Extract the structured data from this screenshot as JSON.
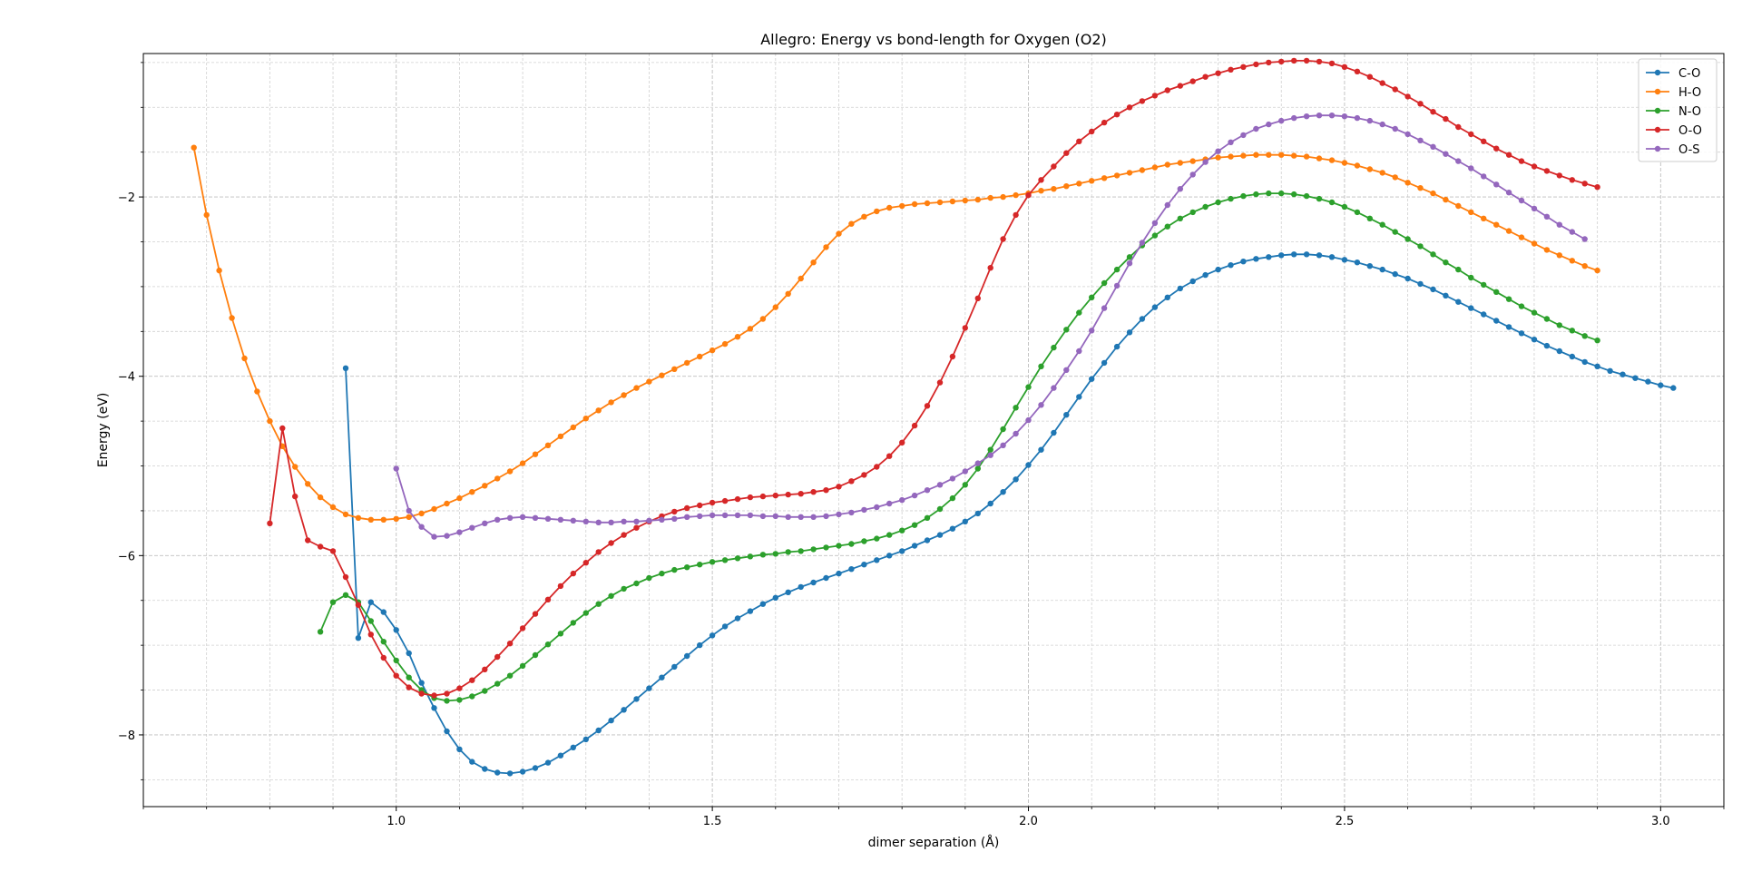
{
  "chart_data": {
    "type": "line",
    "title": "Allegro: Energy vs bond-length for Oxygen (O2)",
    "xlabel": "dimer separation (Å)",
    "ylabel": "Energy (eV)",
    "xlim": [
      0.6,
      3.1
    ],
    "ylim": [
      -8.8,
      -0.4
    ],
    "x_major_ticks": [
      1.0,
      1.5,
      2.0,
      2.5,
      3.0
    ],
    "x_tick_labels": [
      "1.0",
      "1.5",
      "2.0",
      "2.5",
      "3.0"
    ],
    "x_minor_step": 0.1,
    "y_major_ticks": [
      -8,
      -6,
      -4,
      -2
    ],
    "y_tick_labels": [
      "−8",
      "−6",
      "−4",
      "−2"
    ],
    "y_minor_step": 0.5,
    "grid": true,
    "legend_position": "top-right",
    "marker": "circle",
    "series": [
      {
        "name": "C-O",
        "color": "#1f77b4",
        "x_start": 0.92,
        "x_step": 0.02,
        "y": [
          -3.91,
          -6.92,
          -6.52,
          -6.63,
          -6.83,
          -7.09,
          -7.42,
          -7.7,
          -7.96,
          -8.16,
          -8.3,
          -8.38,
          -8.42,
          -8.43,
          -8.41,
          -8.37,
          -8.31,
          -8.23,
          -8.14,
          -8.05,
          -7.95,
          -7.84,
          -7.72,
          -7.6,
          -7.48,
          -7.36,
          -7.24,
          -7.12,
          -7.0,
          -6.89,
          -6.79,
          -6.7,
          -6.62,
          -6.54,
          -6.47,
          -6.41,
          -6.35,
          -6.3,
          -6.25,
          -6.2,
          -6.15,
          -6.1,
          -6.05,
          -6.0,
          -5.95,
          -5.89,
          -5.83,
          -5.77,
          -5.7,
          -5.62,
          -5.53,
          -5.42,
          -5.29,
          -5.15,
          -4.99,
          -4.82,
          -4.63,
          -4.43,
          -4.23,
          -4.03,
          -3.85,
          -3.67,
          -3.51,
          -3.36,
          -3.23,
          -3.12,
          -3.02,
          -2.94,
          -2.87,
          -2.81,
          -2.76,
          -2.72,
          -2.69,
          -2.67,
          -2.65,
          -2.64,
          -2.64,
          -2.65,
          -2.67,
          -2.7,
          -2.73,
          -2.77,
          -2.81,
          -2.86,
          -2.91,
          -2.97,
          -3.03,
          -3.1,
          -3.17,
          -3.24,
          -3.31,
          -3.38,
          -3.45,
          -3.52,
          -3.59,
          -3.66,
          -3.72,
          -3.78,
          -3.84,
          -3.89,
          -3.94,
          -3.98,
          -4.02,
          -4.06,
          -4.1,
          -4.13
        ]
      },
      {
        "name": "H-O",
        "color": "#ff7f0e",
        "x_start": 0.68,
        "x_step": 0.02,
        "y": [
          -1.45,
          -2.2,
          -2.82,
          -3.35,
          -3.8,
          -4.17,
          -4.5,
          -4.78,
          -5.01,
          -5.2,
          -5.35,
          -5.46,
          -5.54,
          -5.58,
          -5.6,
          -5.6,
          -5.59,
          -5.57,
          -5.53,
          -5.48,
          -5.42,
          -5.36,
          -5.29,
          -5.22,
          -5.14,
          -5.06,
          -4.97,
          -4.87,
          -4.77,
          -4.67,
          -4.57,
          -4.47,
          -4.38,
          -4.29,
          -4.21,
          -4.13,
          -4.06,
          -3.99,
          -3.92,
          -3.85,
          -3.78,
          -3.71,
          -3.64,
          -3.56,
          -3.47,
          -3.36,
          -3.23,
          -3.08,
          -2.91,
          -2.73,
          -2.56,
          -2.41,
          -2.3,
          -2.22,
          -2.16,
          -2.12,
          -2.1,
          -2.08,
          -2.07,
          -2.06,
          -2.05,
          -2.04,
          -2.03,
          -2.01,
          -2.0,
          -1.98,
          -1.96,
          -1.93,
          -1.91,
          -1.88,
          -1.85,
          -1.82,
          -1.79,
          -1.76,
          -1.73,
          -1.7,
          -1.67,
          -1.64,
          -1.62,
          -1.6,
          -1.58,
          -1.56,
          -1.55,
          -1.54,
          -1.53,
          -1.53,
          -1.53,
          -1.54,
          -1.55,
          -1.57,
          -1.59,
          -1.62,
          -1.65,
          -1.69,
          -1.73,
          -1.78,
          -1.84,
          -1.9,
          -1.96,
          -2.03,
          -2.1,
          -2.17,
          -2.24,
          -2.31,
          -2.38,
          -2.45,
          -2.52,
          -2.59,
          -2.65,
          -2.71,
          -2.77,
          -2.82
        ]
      },
      {
        "name": "N-O",
        "color": "#2ca02c",
        "x_start": 0.88,
        "x_step": 0.02,
        "y": [
          -6.85,
          -6.52,
          -6.44,
          -6.52,
          -6.73,
          -6.96,
          -7.17,
          -7.36,
          -7.5,
          -7.59,
          -7.62,
          -7.61,
          -7.57,
          -7.51,
          -7.43,
          -7.34,
          -7.23,
          -7.11,
          -6.99,
          -6.87,
          -6.75,
          -6.64,
          -6.54,
          -6.45,
          -6.37,
          -6.31,
          -6.25,
          -6.2,
          -6.16,
          -6.13,
          -6.1,
          -6.07,
          -6.05,
          -6.03,
          -6.01,
          -5.99,
          -5.98,
          -5.96,
          -5.95,
          -5.93,
          -5.91,
          -5.89,
          -5.87,
          -5.84,
          -5.81,
          -5.77,
          -5.72,
          -5.66,
          -5.58,
          -5.48,
          -5.36,
          -5.21,
          -5.03,
          -4.82,
          -4.59,
          -4.35,
          -4.12,
          -3.89,
          -3.68,
          -3.48,
          -3.29,
          -3.12,
          -2.96,
          -2.81,
          -2.67,
          -2.54,
          -2.43,
          -2.33,
          -2.24,
          -2.17,
          -2.11,
          -2.06,
          -2.02,
          -1.99,
          -1.97,
          -1.96,
          -1.96,
          -1.97,
          -1.99,
          -2.02,
          -2.06,
          -2.11,
          -2.17,
          -2.24,
          -2.31,
          -2.39,
          -2.47,
          -2.55,
          -2.64,
          -2.73,
          -2.81,
          -2.9,
          -2.98,
          -3.06,
          -3.14,
          -3.22,
          -3.29,
          -3.36,
          -3.43,
          -3.49,
          -3.55,
          -3.6
        ]
      },
      {
        "name": "O-O",
        "color": "#d62728",
        "x_start": 0.8,
        "x_step": 0.02,
        "y": [
          -5.64,
          -4.58,
          -5.34,
          -5.83,
          -5.9,
          -5.95,
          -6.24,
          -6.55,
          -6.88,
          -7.14,
          -7.34,
          -7.47,
          -7.54,
          -7.56,
          -7.54,
          -7.48,
          -7.39,
          -7.27,
          -7.13,
          -6.98,
          -6.81,
          -6.65,
          -6.49,
          -6.34,
          -6.2,
          -6.08,
          -5.96,
          -5.86,
          -5.77,
          -5.69,
          -5.62,
          -5.56,
          -5.51,
          -5.47,
          -5.44,
          -5.41,
          -5.39,
          -5.37,
          -5.35,
          -5.34,
          -5.33,
          -5.32,
          -5.31,
          -5.29,
          -5.27,
          -5.23,
          -5.17,
          -5.1,
          -5.01,
          -4.89,
          -4.74,
          -4.55,
          -4.33,
          -4.07,
          -3.78,
          -3.46,
          -3.13,
          -2.79,
          -2.47,
          -2.2,
          -1.98,
          -1.81,
          -1.66,
          -1.51,
          -1.38,
          -1.27,
          -1.17,
          -1.08,
          -1.0,
          -0.93,
          -0.87,
          -0.81,
          -0.76,
          -0.71,
          -0.66,
          -0.62,
          -0.58,
          -0.55,
          -0.52,
          -0.5,
          -0.49,
          -0.48,
          -0.48,
          -0.49,
          -0.51,
          -0.55,
          -0.6,
          -0.66,
          -0.73,
          -0.8,
          -0.88,
          -0.96,
          -1.05,
          -1.13,
          -1.22,
          -1.3,
          -1.38,
          -1.46,
          -1.53,
          -1.6,
          -1.66,
          -1.71,
          -1.76,
          -1.81,
          -1.85,
          -1.89
        ]
      },
      {
        "name": "O-S",
        "color": "#9467bd",
        "x_start": 1.0,
        "x_step": 0.02,
        "y": [
          -5.03,
          -5.5,
          -5.68,
          -5.79,
          -5.78,
          -5.74,
          -5.69,
          -5.64,
          -5.6,
          -5.58,
          -5.57,
          -5.58,
          -5.59,
          -5.6,
          -5.61,
          -5.62,
          -5.63,
          -5.63,
          -5.62,
          -5.62,
          -5.61,
          -5.6,
          -5.59,
          -5.57,
          -5.56,
          -5.55,
          -5.55,
          -5.55,
          -5.55,
          -5.56,
          -5.56,
          -5.57,
          -5.57,
          -5.57,
          -5.56,
          -5.54,
          -5.52,
          -5.49,
          -5.46,
          -5.42,
          -5.38,
          -5.33,
          -5.27,
          -5.21,
          -5.14,
          -5.06,
          -4.97,
          -4.88,
          -4.77,
          -4.64,
          -4.49,
          -4.32,
          -4.13,
          -3.93,
          -3.72,
          -3.49,
          -3.24,
          -2.99,
          -2.74,
          -2.51,
          -2.29,
          -2.09,
          -1.91,
          -1.75,
          -1.61,
          -1.49,
          -1.39,
          -1.31,
          -1.24,
          -1.19,
          -1.15,
          -1.12,
          -1.1,
          -1.09,
          -1.09,
          -1.1,
          -1.12,
          -1.15,
          -1.19,
          -1.24,
          -1.3,
          -1.37,
          -1.44,
          -1.52,
          -1.6,
          -1.68,
          -1.77,
          -1.86,
          -1.95,
          -2.04,
          -2.13,
          -2.22,
          -2.31,
          -2.39,
          -2.47
        ]
      }
    ]
  }
}
